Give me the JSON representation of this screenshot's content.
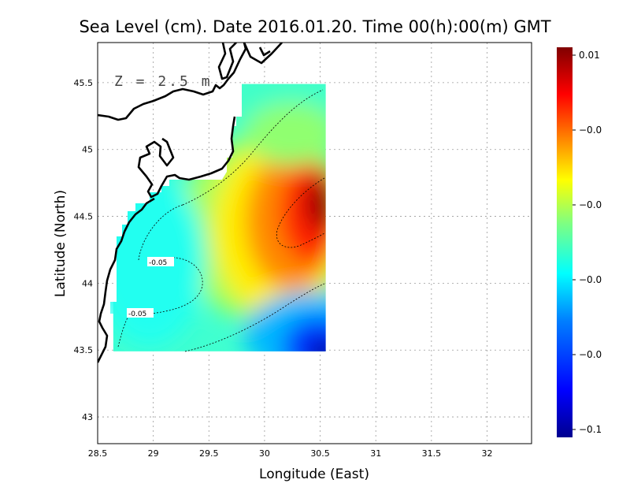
{
  "chart_data": {
    "type": "heatmap",
    "title": "Sea Level (cm). Date 2016.01.20. Time 00(h):00(m) GMT",
    "xlabel": "Longitude (East)",
    "ylabel": "Latitude (North)",
    "depth_annotation": "Z = 2.5 m",
    "xlim": [
      28.5,
      32.4
    ],
    "ylim": [
      42.8,
      45.8
    ],
    "x_ticks": [
      {
        "value": 28.5,
        "label": "28.5"
      },
      {
        "value": 29,
        "label": "29"
      },
      {
        "value": 29.5,
        "label": "29.5"
      },
      {
        "value": 30,
        "label": "30"
      },
      {
        "value": 30.5,
        "label": "30.5"
      },
      {
        "value": 31,
        "label": "31"
      },
      {
        "value": 31.5,
        "label": "31.5"
      },
      {
        "value": 32,
        "label": "32"
      }
    ],
    "y_ticks": [
      {
        "value": 43,
        "label": "43"
      },
      {
        "value": 43.5,
        "label": "43.5"
      },
      {
        "value": 44,
        "label": "44"
      },
      {
        "value": 44.5,
        "label": "44.5"
      },
      {
        "value": 45,
        "label": "45"
      },
      {
        "value": 45.5,
        "label": "45.5"
      }
    ],
    "grid": true,
    "data_extent": {
      "lon": [
        28.64,
        30.55
      ],
      "lat": [
        43.49,
        45.49
      ]
    },
    "field_peaks": [
      {
        "name": "high",
        "lon": 30.5,
        "lat": 44.6,
        "value": 0.01
      },
      {
        "name": "low",
        "lon": 30.5,
        "lat": 43.5,
        "value": -0.1
      }
    ],
    "contour_labels": [
      {
        "text": "-0.05",
        "lon": 28.95,
        "lat": 44.17
      },
      {
        "text": "-0.05",
        "lon": 28.8,
        "lat": 43.78
      }
    ],
    "colorbar": {
      "min": -0.1,
      "max": 0.01,
      "tick_labels": [
        "0.01",
        "−0.0",
        "−0.0",
        "−0.0",
        "−0.0",
        "−0.1"
      ],
      "colors": [
        "#00008f",
        "#0000ff",
        "#0080ff",
        "#00ffff",
        "#80ff80",
        "#ffff00",
        "#ff8000",
        "#ff0000",
        "#800000"
      ]
    }
  }
}
